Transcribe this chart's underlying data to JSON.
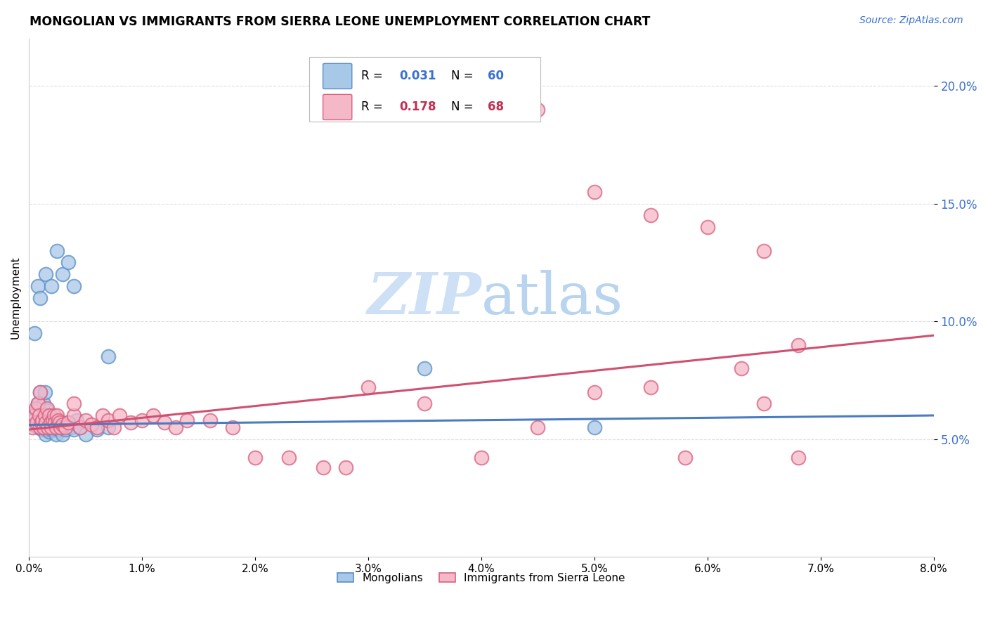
{
  "title": "MONGOLIAN VS IMMIGRANTS FROM SIERRA LEONE UNEMPLOYMENT CORRELATION CHART",
  "source": "Source: ZipAtlas.com",
  "ylabel": "Unemployment",
  "xmin": 0.0,
  "xmax": 0.08,
  "ymin": 0.0,
  "ymax": 0.22,
  "yticks": [
    0.05,
    0.1,
    0.15,
    0.2
  ],
  "xticks": [
    0.0,
    0.01,
    0.02,
    0.03,
    0.04,
    0.05,
    0.06,
    0.07,
    0.08
  ],
  "legend_label1": "Mongolians",
  "legend_label2": "Immigrants from Sierra Leone",
  "color_blue_fill": "#a8c8e8",
  "color_blue_edge": "#5b8ec7",
  "color_pink_fill": "#f5b8c8",
  "color_pink_edge": "#d96080",
  "color_blue_line": "#4a7cc0",
  "color_pink_line": "#d05070",
  "color_R_blue": "#3a70d0",
  "color_R_pink": "#c03050",
  "watermark_color": "#cde0f5",
  "grid_color": "#dddddd",
  "blue_trend_x0": 0.0,
  "blue_trend_y0": 0.056,
  "blue_trend_x1": 0.08,
  "blue_trend_y1": 0.06,
  "pink_trend_x0": 0.0,
  "pink_trend_y0": 0.054,
  "pink_trend_x1": 0.08,
  "pink_trend_y1": 0.094,
  "blue_x": [
    0.0003,
    0.0005,
    0.0006,
    0.0007,
    0.0008,
    0.0008,
    0.0009,
    0.0009,
    0.001,
    0.001,
    0.001,
    0.001,
    0.0012,
    0.0012,
    0.0013,
    0.0013,
    0.0014,
    0.0014,
    0.0015,
    0.0015,
    0.0016,
    0.0016,
    0.0017,
    0.0018,
    0.0018,
    0.0019,
    0.002,
    0.002,
    0.0021,
    0.0022,
    0.0023,
    0.0024,
    0.0025,
    0.0025,
    0.0026,
    0.0028,
    0.003,
    0.003,
    0.0032,
    0.0033,
    0.0035,
    0.0037,
    0.004,
    0.0042,
    0.0045,
    0.005,
    0.006,
    0.007,
    0.035,
    0.05,
    0.0005,
    0.0008,
    0.001,
    0.0015,
    0.002,
    0.0025,
    0.003,
    0.0035,
    0.004,
    0.007
  ],
  "blue_y": [
    0.056,
    0.058,
    0.06,
    0.062,
    0.055,
    0.065,
    0.058,
    0.062,
    0.055,
    0.058,
    0.06,
    0.07,
    0.054,
    0.057,
    0.06,
    0.065,
    0.055,
    0.07,
    0.052,
    0.057,
    0.054,
    0.062,
    0.057,
    0.053,
    0.058,
    0.06,
    0.054,
    0.058,
    0.056,
    0.055,
    0.057,
    0.052,
    0.055,
    0.058,
    0.054,
    0.056,
    0.052,
    0.055,
    0.054,
    0.056,
    0.057,
    0.055,
    0.054,
    0.058,
    0.055,
    0.052,
    0.054,
    0.055,
    0.08,
    0.055,
    0.095,
    0.115,
    0.11,
    0.12,
    0.115,
    0.13,
    0.12,
    0.125,
    0.115,
    0.085
  ],
  "pink_x": [
    0.0003,
    0.0004,
    0.0005,
    0.0006,
    0.0007,
    0.0008,
    0.0009,
    0.001,
    0.001,
    0.0011,
    0.0012,
    0.0013,
    0.0014,
    0.0015,
    0.0016,
    0.0017,
    0.0018,
    0.0019,
    0.002,
    0.0021,
    0.0022,
    0.0023,
    0.0024,
    0.0025,
    0.0026,
    0.0027,
    0.0028,
    0.003,
    0.0032,
    0.0035,
    0.004,
    0.004,
    0.0045,
    0.005,
    0.0055,
    0.006,
    0.0065,
    0.007,
    0.0075,
    0.008,
    0.009,
    0.01,
    0.011,
    0.012,
    0.013,
    0.014,
    0.016,
    0.018,
    0.02,
    0.023,
    0.026,
    0.028,
    0.03,
    0.035,
    0.04,
    0.045,
    0.05,
    0.055,
    0.058,
    0.063,
    0.065,
    0.068,
    0.045,
    0.05,
    0.055,
    0.06,
    0.065,
    0.068
  ],
  "pink_y": [
    0.055,
    0.058,
    0.06,
    0.063,
    0.057,
    0.065,
    0.06,
    0.055,
    0.07,
    0.057,
    0.058,
    0.055,
    0.06,
    0.057,
    0.063,
    0.055,
    0.06,
    0.057,
    0.055,
    0.058,
    0.06,
    0.057,
    0.055,
    0.06,
    0.058,
    0.057,
    0.055,
    0.056,
    0.055,
    0.057,
    0.06,
    0.065,
    0.055,
    0.058,
    0.056,
    0.055,
    0.06,
    0.058,
    0.055,
    0.06,
    0.057,
    0.058,
    0.06,
    0.057,
    0.055,
    0.058,
    0.058,
    0.055,
    0.042,
    0.042,
    0.038,
    0.038,
    0.072,
    0.065,
    0.042,
    0.055,
    0.07,
    0.072,
    0.042,
    0.08,
    0.065,
    0.042,
    0.19,
    0.155,
    0.145,
    0.14,
    0.13,
    0.09
  ]
}
